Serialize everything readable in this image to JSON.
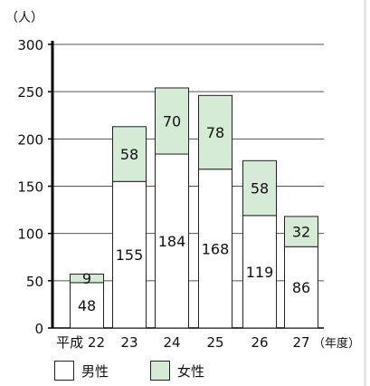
{
  "chart_data": {
    "type": "bar",
    "stacked": true,
    "unit_label": "（人）",
    "x_suffix": "（年度）",
    "categories": [
      "平成 22",
      "23",
      "24",
      "25",
      "26",
      "27"
    ],
    "series": [
      {
        "name": "男性",
        "values": [
          48,
          155,
          184,
          168,
          119,
          86
        ],
        "color": "#ffffff"
      },
      {
        "name": "女性",
        "values": [
          9,
          58,
          70,
          78,
          58,
          32
        ],
        "color": "#d5ebd5"
      }
    ],
    "yticks": [
      0,
      50,
      100,
      150,
      200,
      250,
      300
    ],
    "ylim": [
      0,
      300
    ],
    "grid": true,
    "legend": "bottom-left"
  }
}
